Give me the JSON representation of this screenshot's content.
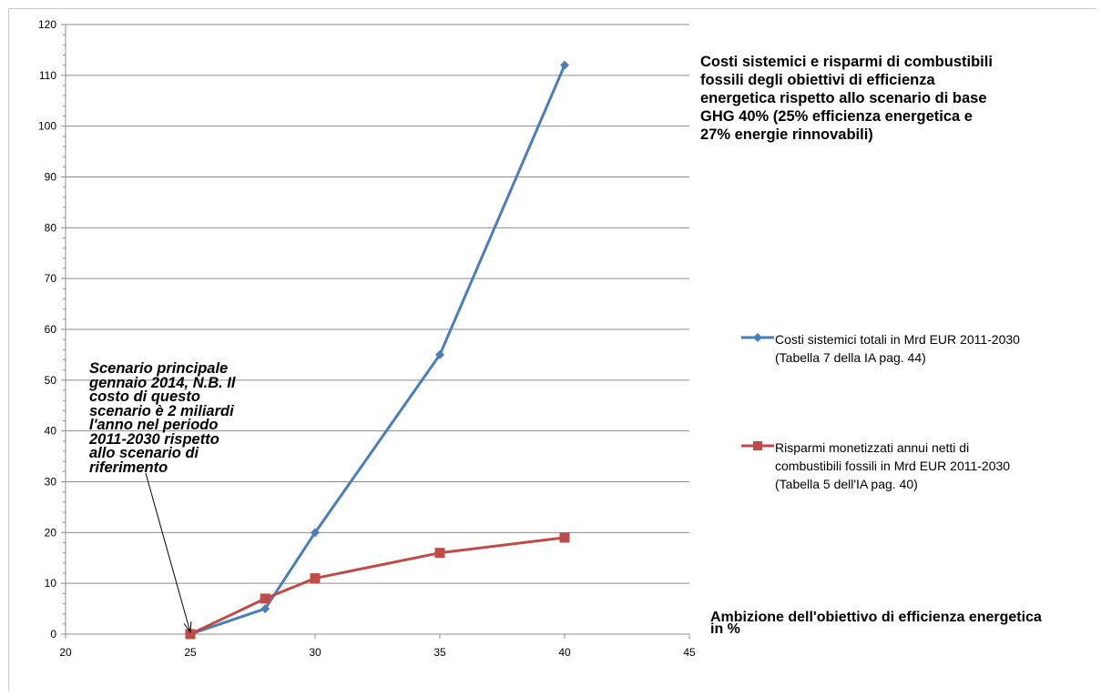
{
  "chart_data": {
    "type": "line",
    "title": "Costi sistemici e risparmi di combustibili\nfossili degli obiettivi di efficienza\nenergetica rispetto allo scenario di base\nGHG 40%   (25% efficienza energetica e\n27% energie rinnovabili)",
    "xlabel": "Ambizione dell'obiettivo di efficienza energetica in %",
    "ylabel": "",
    "xlim": [
      20,
      45
    ],
    "ylim": [
      0,
      120
    ],
    "x_ticks": [
      "20",
      "25",
      "30",
      "35",
      "40",
      "45"
    ],
    "y_ticks": [
      "0",
      "10",
      "20",
      "30",
      "40",
      "50",
      "60",
      "70",
      "80",
      "90",
      "100",
      "110",
      "120"
    ],
    "grid": "horizontal",
    "legend_position": "right",
    "series": [
      {
        "name": "Costi sistemici totali in Mrd EUR 2011-2030\n(Tabella 7 della IA pag. 44)",
        "marker": "diamond",
        "color": "#4a7ebb",
        "x": [
          25,
          28,
          30,
          35,
          40
        ],
        "values": [
          0,
          5,
          20,
          55,
          112
        ]
      },
      {
        "name": "Risparmi monetizzati annui netti di\ncombustibili fossili in Mrd EUR 2011-2030\n(Tabella 5 dell'IA pag. 40)",
        "marker": "square",
        "color": "#be4b48",
        "x": [
          25,
          28,
          30,
          35,
          40
        ],
        "values": [
          0,
          7,
          11,
          16,
          19
        ]
      }
    ],
    "annotation": {
      "text": "Scenario principale\ngennaio 2014, N.B. Il\ncosto di questo\nscenario è 2 miliardi\nl'anno nel periodo\n2011-2030  rispetto\nallo scenario di\nriferimento",
      "points_to": [
        25,
        0
      ]
    }
  }
}
